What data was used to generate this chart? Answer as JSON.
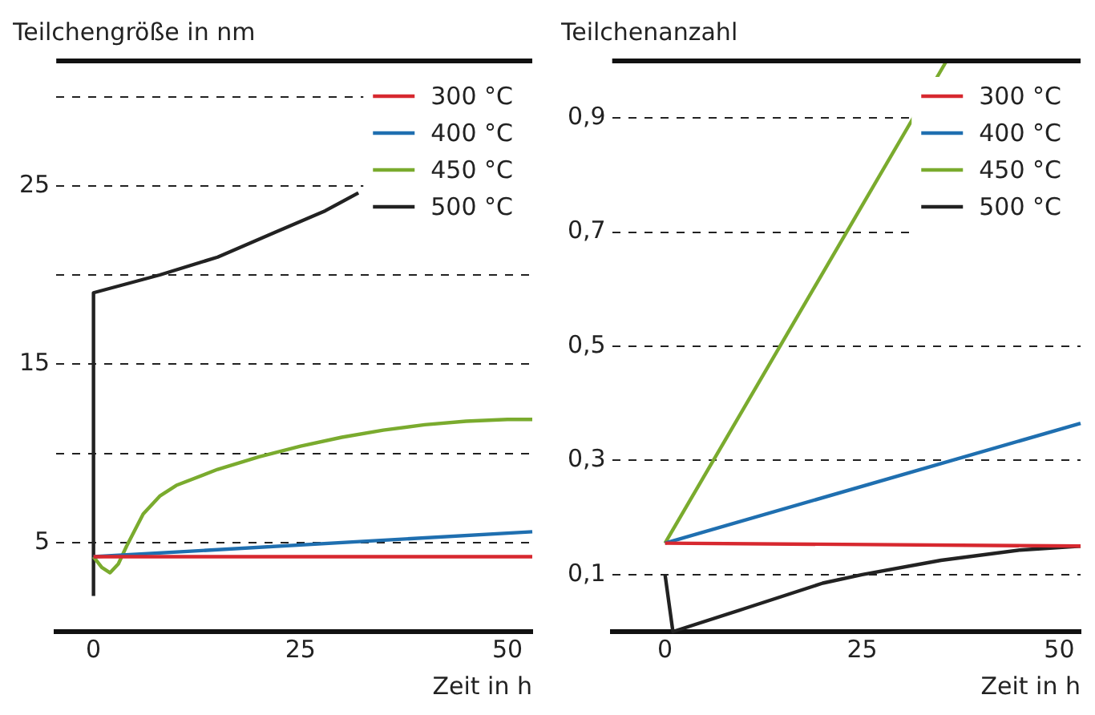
{
  "chart_data": [
    {
      "type": "line",
      "title": "Teilchengröße in nm",
      "xlabel": "Zeit in h",
      "xlim": [
        -4.5,
        53
      ],
      "xticks": [
        0,
        25,
        50
      ],
      "ylim": [
        0,
        32
      ],
      "yticks": [
        5,
        {
          "value": 10,
          "label": null
        },
        15,
        {
          "value": 20,
          "label": null
        },
        25,
        {
          "value": 30,
          "label": null
        }
      ],
      "grid": "y",
      "legend": "top right",
      "series": [
        {
          "name": "300 °C",
          "color": "#d7282f",
          "x": [
            0,
            53
          ],
          "values": [
            4.2,
            4.2
          ]
        },
        {
          "name": "400 °C",
          "color": "#1f6fb0",
          "x": [
            0,
            53
          ],
          "values": [
            4.2,
            5.6
          ]
        },
        {
          "name": "450 °C",
          "color": "#7aab2e",
          "x": [
            0,
            1,
            2,
            3,
            4,
            6,
            8,
            10,
            15,
            20,
            25,
            30,
            35,
            40,
            45,
            50,
            53
          ],
          "values": [
            4.2,
            3.6,
            3.3,
            3.8,
            4.8,
            6.6,
            7.6,
            8.2,
            9.1,
            9.8,
            10.4,
            10.9,
            11.3,
            11.6,
            11.8,
            11.9,
            11.9
          ]
        },
        {
          "name": "500 °C",
          "color": "#222222",
          "x": [
            0,
            0,
            8,
            15,
            22,
            28,
            32
          ],
          "values": [
            2,
            19,
            20,
            21,
            22.4,
            23.6,
            24.6
          ]
        }
      ]
    },
    {
      "type": "line",
      "title": "Teilchenanzahl",
      "xlabel": "Zeit in h",
      "xlim": [
        -6.7,
        52.7
      ],
      "xticks": [
        0,
        25,
        50
      ],
      "ylim": [
        0,
        1
      ],
      "yticks": [
        {
          "value": 0.1,
          "label": "0,1"
        },
        {
          "value": 0.3,
          "label": "0,3"
        },
        {
          "value": 0.5,
          "label": "0,5"
        },
        {
          "value": 0.7,
          "label": "0,7"
        },
        {
          "value": 0.9,
          "label": "0,9"
        }
      ],
      "grid": "y",
      "legend": "top right",
      "series": [
        {
          "name": "300 °C",
          "color": "#d7282f",
          "x": [
            0,
            52.7
          ],
          "values": [
            0.155,
            0.15
          ]
        },
        {
          "name": "400 °C",
          "color": "#1f6fb0",
          "x": [
            0,
            52.7
          ],
          "values": [
            0.155,
            0.365
          ]
        },
        {
          "name": "450 °C",
          "color": "#7aab2e",
          "x": [
            0,
            35.7
          ],
          "values": [
            0.155,
            1.0
          ]
        },
        {
          "name": "500 °C",
          "color": "#222222",
          "x": [
            0,
            1,
            10,
            20,
            25,
            35,
            45,
            52.7
          ],
          "values": [
            0.1,
            0,
            0.04,
            0.085,
            0.1,
            0.125,
            0.143,
            0.15
          ]
        }
      ]
    }
  ]
}
